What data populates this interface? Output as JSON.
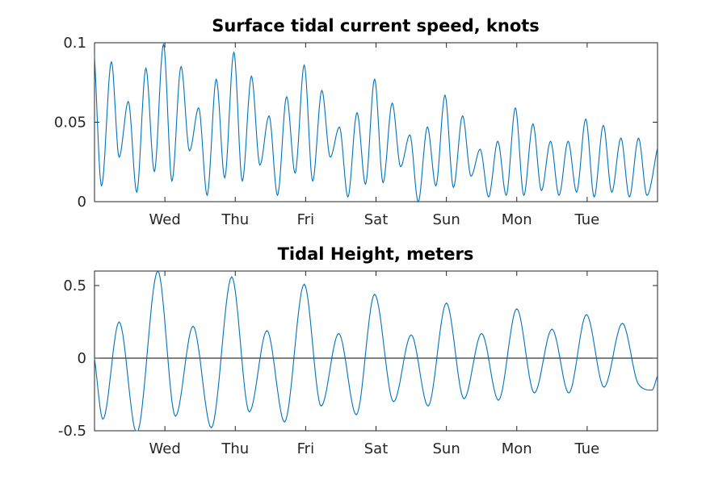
{
  "chart_data": [
    {
      "type": "line",
      "title": "Surface tidal current speed, knots",
      "xlabel": "",
      "ylabel": "",
      "ylim": [
        0,
        0.1
      ],
      "xlim": [
        0,
        8
      ],
      "yticks": [
        0,
        0.05,
        0.1
      ],
      "ytick_labels": [
        "0",
        "0.05",
        "0.1"
      ],
      "xticks": [
        1,
        2,
        3,
        4,
        5,
        6,
        7
      ],
      "xtick_labels": [
        "Wed",
        "Thu",
        "Fri",
        "Sat",
        "Sun",
        "Mon",
        "Tue"
      ],
      "zero_line": false,
      "grid": false,
      "color": "#0072BD",
      "series": [
        {
          "name": "",
          "x": [
            0.0,
            0.1,
            0.24,
            0.35,
            0.48,
            0.6,
            0.73,
            0.85,
            0.98,
            1.1,
            1.23,
            1.35,
            1.48,
            1.6,
            1.73,
            1.85,
            1.98,
            2.1,
            2.23,
            2.35,
            2.48,
            2.6,
            2.73,
            2.85,
            2.98,
            3.1,
            3.23,
            3.35,
            3.48,
            3.6,
            3.73,
            3.85,
            3.98,
            4.1,
            4.23,
            4.35,
            4.48,
            4.6,
            4.73,
            4.85,
            4.98,
            5.1,
            5.23,
            5.35,
            5.48,
            5.6,
            5.73,
            5.85,
            5.98,
            6.1,
            6.23,
            6.35,
            6.48,
            6.6,
            6.73,
            6.85,
            6.98,
            7.1,
            7.23,
            7.35,
            7.48,
            7.6,
            7.73,
            7.85,
            8.0
          ],
          "y": [
            0.092,
            0.01,
            0.088,
            0.028,
            0.063,
            0.006,
            0.084,
            0.019,
            0.099,
            0.013,
            0.085,
            0.032,
            0.059,
            0.004,
            0.077,
            0.015,
            0.094,
            0.013,
            0.079,
            0.023,
            0.054,
            0.004,
            0.066,
            0.018,
            0.086,
            0.013,
            0.07,
            0.028,
            0.047,
            0.003,
            0.056,
            0.011,
            0.077,
            0.012,
            0.062,
            0.022,
            0.042,
            0.0,
            0.047,
            0.01,
            0.067,
            0.009,
            0.054,
            0.016,
            0.033,
            0.003,
            0.038,
            0.004,
            0.059,
            0.004,
            0.049,
            0.007,
            0.038,
            0.004,
            0.038,
            0.006,
            0.052,
            0.003,
            0.048,
            0.006,
            0.04,
            0.003,
            0.04,
            0.004,
            0.034
          ]
        }
      ]
    },
    {
      "type": "line",
      "title": "Tidal Height, meters",
      "xlabel": "",
      "ylabel": "",
      "ylim": [
        -0.5,
        0.6
      ],
      "xlim": [
        0,
        8
      ],
      "yticks": [
        -0.5,
        0,
        0.5
      ],
      "ytick_labels": [
        "-0.5",
        "0",
        "0.5"
      ],
      "xticks": [
        1,
        2,
        3,
        4,
        5,
        6,
        7
      ],
      "xtick_labels": [
        "Wed",
        "Thu",
        "Fri",
        "Sat",
        "Sun",
        "Mon",
        "Tue"
      ],
      "zero_line": true,
      "grid": false,
      "color": "#0072BD",
      "series": [
        {
          "name": "",
          "x": [
            0.0,
            0.12,
            0.35,
            0.6,
            0.9,
            1.15,
            1.4,
            1.66,
            1.95,
            2.2,
            2.45,
            2.7,
            2.98,
            3.22,
            3.47,
            3.72,
            3.98,
            4.25,
            4.5,
            4.74,
            5.0,
            5.25,
            5.5,
            5.74,
            6.0,
            6.25,
            6.5,
            6.74,
            6.99,
            7.24,
            7.5,
            7.73,
            7.92,
            8.0
          ],
          "y": [
            0.0,
            -0.42,
            0.25,
            -0.52,
            0.6,
            -0.4,
            0.22,
            -0.48,
            0.56,
            -0.37,
            0.19,
            -0.44,
            0.51,
            -0.33,
            0.17,
            -0.39,
            0.44,
            -0.3,
            0.16,
            -0.33,
            0.38,
            -0.28,
            0.17,
            -0.29,
            0.34,
            -0.24,
            0.2,
            -0.24,
            0.3,
            -0.2,
            0.24,
            -0.18,
            -0.22,
            -0.12
          ]
        }
      ]
    }
  ]
}
